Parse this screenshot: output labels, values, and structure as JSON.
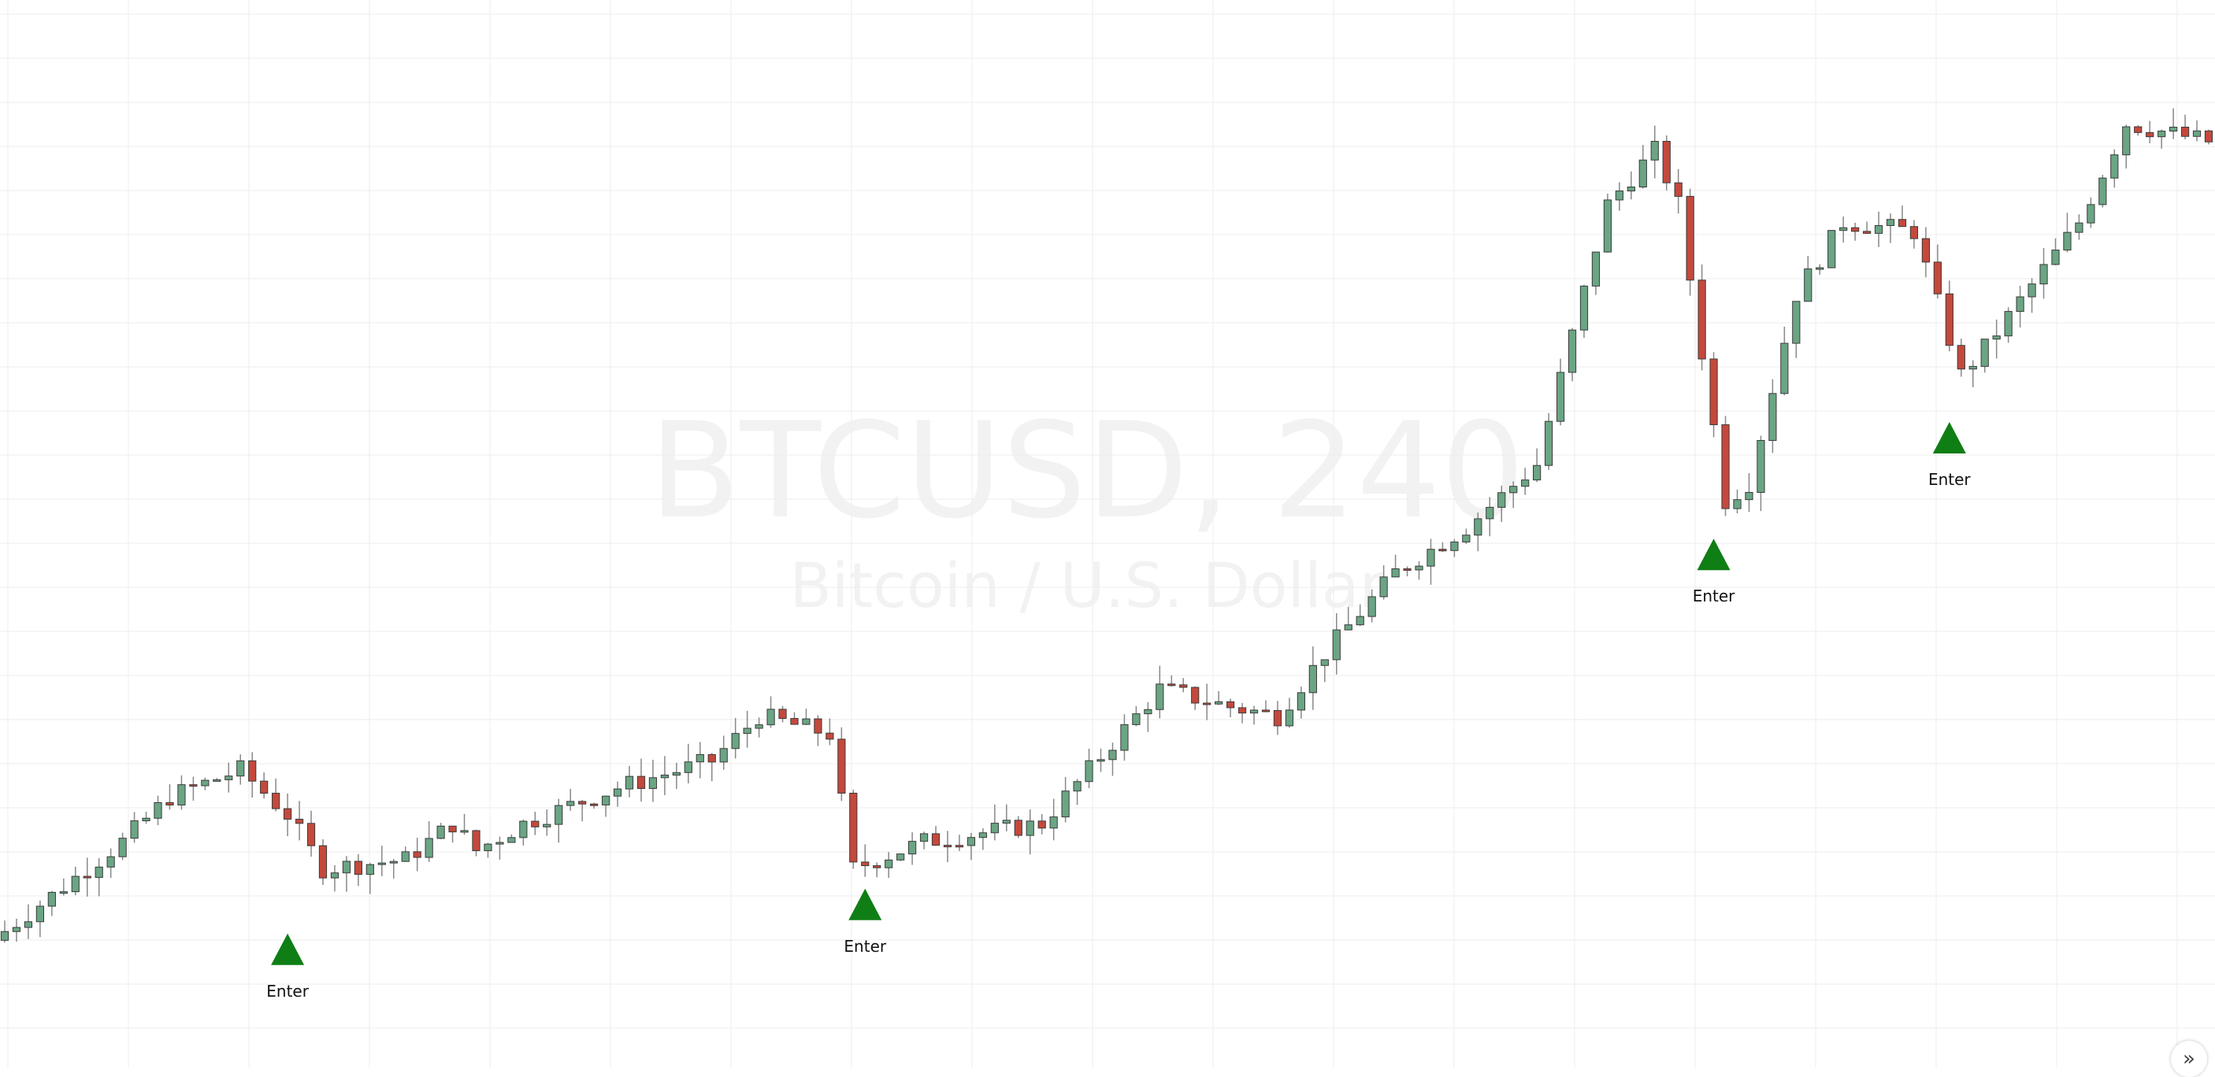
{
  "watermark": {
    "symbol": "BTCUSD, 240",
    "description": "Bitcoin / U.S. Dollar"
  },
  "colors": {
    "up": "#6aa584",
    "down": "#c4493c",
    "wick": "#888888",
    "signal": "#0f7e14",
    "grid": "#eeeeee",
    "watermark": "#f2f2f2"
  },
  "scroll_button": {
    "icon": "double-chevron-right-icon",
    "glyph": "»"
  },
  "chart_data": {
    "type": "candlestick",
    "title": "",
    "xlabel": "",
    "ylabel": "",
    "grid": true,
    "x_range": [
      0,
      187
    ],
    "y_range": [
      0,
      100
    ],
    "note_units": "relative price level (no price scale visible)",
    "waypoints": [
      [
        0,
        5
      ],
      [
        10,
        15
      ],
      [
        14,
        20
      ],
      [
        20,
        23
      ],
      [
        24,
        18
      ],
      [
        27,
        12
      ],
      [
        34,
        13
      ],
      [
        38,
        17
      ],
      [
        40,
        14
      ],
      [
        44,
        17
      ],
      [
        52,
        21
      ],
      [
        60,
        24
      ],
      [
        64,
        29
      ],
      [
        70,
        27
      ],
      [
        72,
        12
      ],
      [
        78,
        15
      ],
      [
        88,
        17
      ],
      [
        94,
        26
      ],
      [
        98,
        32
      ],
      [
        104,
        30
      ],
      [
        108,
        29
      ],
      [
        112,
        36
      ],
      [
        118,
        45
      ],
      [
        124,
        50
      ],
      [
        130,
        57
      ],
      [
        136,
        86
      ],
      [
        140,
        92
      ],
      [
        142,
        86
      ],
      [
        146,
        53
      ],
      [
        148,
        55
      ],
      [
        152,
        76
      ],
      [
        156,
        84
      ],
      [
        162,
        83
      ],
      [
        166,
        67
      ],
      [
        168,
        70
      ],
      [
        176,
        84
      ],
      [
        180,
        95
      ],
      [
        187,
        93
      ]
    ],
    "signals": [
      {
        "x": 24,
        "y": 3,
        "label": "Enter"
      },
      {
        "x": 73,
        "y": 8,
        "label": "Enter"
      },
      {
        "x": 145,
        "y": 47,
        "label": "Enter"
      },
      {
        "x": 165,
        "y": 60,
        "label": "Enter"
      }
    ]
  }
}
